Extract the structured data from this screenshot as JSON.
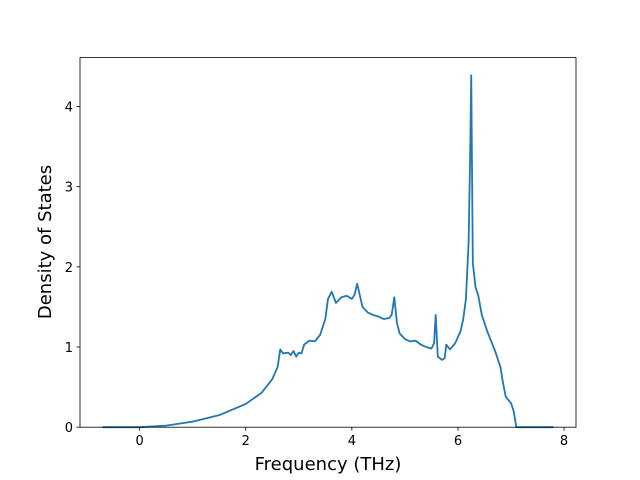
{
  "chart_data": {
    "type": "line",
    "xlabel": "Frequency (THz)",
    "ylabel": "Density of States",
    "xlim": [
      -1.125,
      8.225
    ],
    "ylim": [
      0,
      4.61
    ],
    "xticks": [
      0,
      2,
      4,
      6,
      8
    ],
    "yticks": [
      0,
      1,
      2,
      3,
      4
    ],
    "series": [
      {
        "color": "#1f77b4",
        "x": [
          -0.7,
          0,
          0.5,
          1.0,
          1.5,
          2.0,
          2.3,
          2.5,
          2.6,
          2.65,
          2.7,
          2.8,
          2.85,
          2.9,
          2.95,
          3.0,
          3.05,
          3.1,
          3.2,
          3.3,
          3.4,
          3.5,
          3.55,
          3.62,
          3.7,
          3.8,
          3.9,
          4.0,
          4.05,
          4.1,
          4.2,
          4.3,
          4.4,
          4.5,
          4.6,
          4.7,
          4.75,
          4.8,
          4.85,
          4.9,
          5.0,
          5.1,
          5.2,
          5.3,
          5.4,
          5.5,
          5.55,
          5.58,
          5.62,
          5.7,
          5.75,
          5.78,
          5.85,
          5.95,
          6.05,
          6.1,
          6.15,
          6.2,
          6.23,
          6.25,
          6.28,
          6.33,
          6.38,
          6.45,
          6.55,
          6.7,
          6.8,
          6.85,
          6.9,
          7.0,
          7.05,
          7.1,
          7.8
        ],
        "values": [
          0,
          0,
          0.02,
          0.07,
          0.15,
          0.29,
          0.43,
          0.6,
          0.75,
          0.97,
          0.92,
          0.93,
          0.9,
          0.95,
          0.88,
          0.93,
          0.92,
          1.03,
          1.08,
          1.07,
          1.15,
          1.35,
          1.6,
          1.69,
          1.55,
          1.62,
          1.64,
          1.6,
          1.65,
          1.79,
          1.5,
          1.43,
          1.4,
          1.38,
          1.35,
          1.36,
          1.4,
          1.62,
          1.3,
          1.17,
          1.1,
          1.07,
          1.08,
          1.03,
          1.0,
          0.98,
          1.05,
          1.4,
          0.88,
          0.84,
          0.86,
          1.03,
          0.97,
          1.05,
          1.2,
          1.35,
          1.6,
          2.3,
          3.4,
          4.39,
          2.05,
          1.75,
          1.65,
          1.4,
          1.2,
          0.95,
          0.75,
          0.55,
          0.38,
          0.3,
          0.2,
          0,
          0
        ]
      }
    ]
  }
}
